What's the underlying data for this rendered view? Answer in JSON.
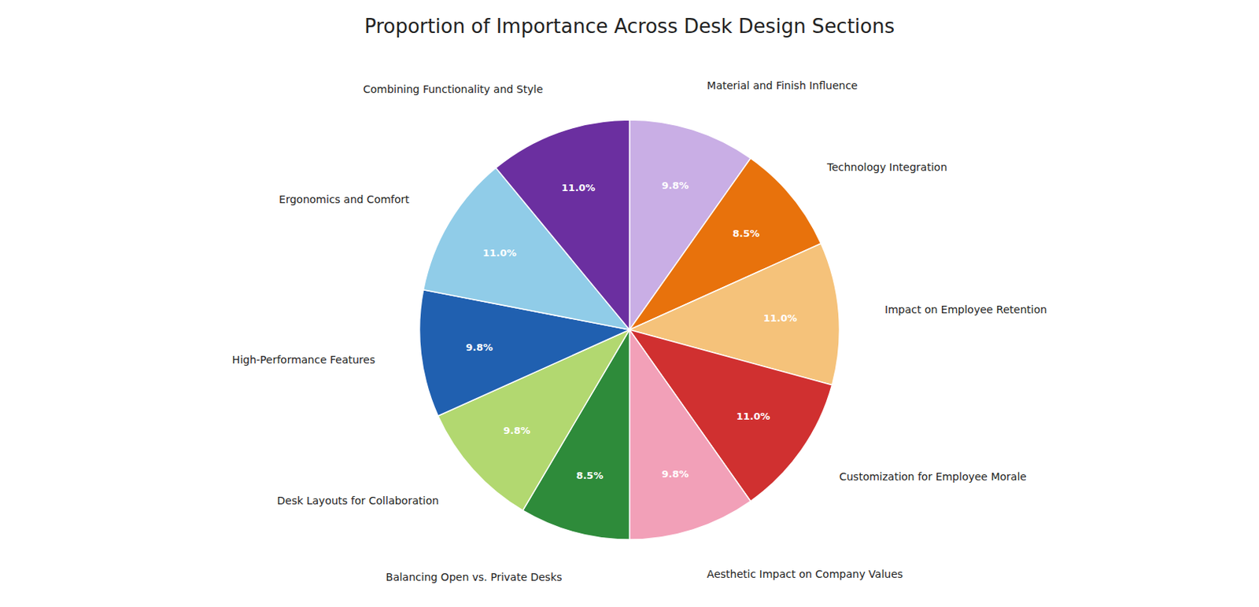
{
  "chart_data": {
    "type": "pie",
    "title": "Proportion of Importance Across Desk Design Sections",
    "categories": [
      "Material and Finish Influence",
      "Technology Integration",
      "Impact on Employee Retention",
      "Customization for Employee Morale",
      "Aesthetic Impact on Company Values",
      "Balancing Open vs. Private Desks",
      "Desk Layouts for Collaboration",
      "High-Performance Features",
      "Ergonomics and Comfort",
      "Combining Functionality and Style"
    ],
    "values": [
      9.8,
      8.5,
      11.0,
      11.0,
      9.8,
      8.5,
      9.8,
      9.8,
      11.0,
      11.0
    ],
    "value_labels": [
      "9.8%",
      "8.5%",
      "11.0%",
      "11.0%",
      "9.8%",
      "8.5%",
      "9.8%",
      "9.8%",
      "11.0%",
      "11.0%"
    ],
    "colors": [
      "#c9aee5",
      "#e8720c",
      "#f5c27a",
      "#d03030",
      "#f2a0b8",
      "#2e8b3a",
      "#b2d870",
      "#2060b0",
      "#90cce8",
      "#6b2fa0"
    ],
    "data_labels": true
  }
}
